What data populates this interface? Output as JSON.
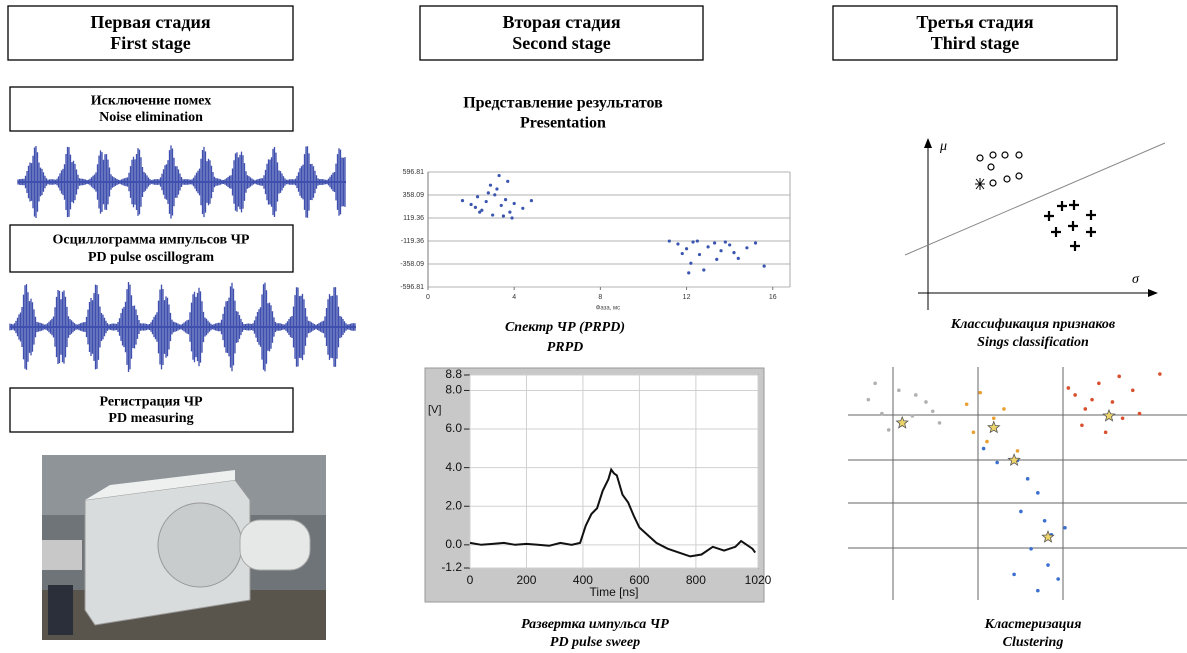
{
  "columns": [
    {
      "title_ru": "Первая стадия",
      "title_en": "First stage",
      "steps": [
        {
          "ru": "Исключение помех",
          "en": "Noise elimination"
        },
        {
          "ru": "Осциллограмма импульсов ЧР",
          "en": "PD pulse oscillogram"
        },
        {
          "ru": "Регистрация ЧР",
          "en": "PD measuring"
        }
      ]
    },
    {
      "title_ru": "Вторая стадия",
      "title_en": "Second stage",
      "heading_ru": "Представление  результатов",
      "heading_en": "Presentation",
      "captions": [
        {
          "ru": "Спектр ЧР (PRPD)",
          "en": "PRPD"
        },
        {
          "ru": "Развертка импульса ЧР",
          "en": "PD pulse sweep"
        }
      ]
    },
    {
      "title_ru": "Третья стадия",
      "title_en": "Third stage",
      "axis_mu": "μ",
      "axis_sigma": "σ",
      "captions": [
        {
          "ru": "Классификация признаков",
          "en": "Sings classification"
        },
        {
          "ru": "Кластеризация",
          "en": "Clustering"
        }
      ]
    }
  ],
  "chart_data": [
    {
      "type": "scatter",
      "x_label": "Фаза, мс",
      "xlim": [
        0,
        16.8
      ],
      "xticks": [
        0,
        4,
        8,
        12,
        16
      ],
      "ylim": [
        -596.81,
        596.81
      ],
      "yticks": [
        596.81,
        358.09,
        119.36,
        -119.36,
        -358.09,
        -596.81
      ],
      "grid": true,
      "series": [
        {
          "color": "#3a55b0",
          "x": [
            1.6,
            2.0,
            2.3,
            2.5,
            2.8,
            3.0,
            3.2,
            3.4,
            3.6,
            3.8,
            2.2,
            2.7,
            3.1,
            3.5,
            4.0,
            4.4,
            4.8,
            3.3,
            2.9,
            3.7,
            3.9,
            2.4
          ],
          "y": [
            300,
            260,
            340,
            200,
            380,
            150,
            420,
            250,
            310,
            180,
            230,
            290,
            360,
            140,
            270,
            220,
            300,
            560,
            460,
            500,
            120,
            180
          ]
        },
        {
          "color": "#3a55b0",
          "x": [
            11.2,
            11.6,
            12.0,
            12.3,
            12.6,
            13.0,
            13.3,
            13.6,
            14.0,
            14.4,
            14.8,
            15.2,
            11.8,
            12.2,
            12.8,
            13.4,
            14.2,
            15.6,
            12.1,
            13.8,
            12.5
          ],
          "y": [
            -120,
            -150,
            -200,
            -130,
            -260,
            -180,
            -140,
            -220,
            -160,
            -300,
            -190,
            -140,
            -250,
            -350,
            -420,
            -310,
            -240,
            -380,
            -450,
            -130,
            -120
          ]
        }
      ]
    },
    {
      "type": "line",
      "x_label": "Time [ns]",
      "y_label": "[V]",
      "color": "#111111",
      "xlim": [
        0,
        1020
      ],
      "xticks": [
        0,
        200,
        400,
        600,
        800,
        1020
      ],
      "ylim": [
        -1.2,
        8.8
      ],
      "yticks": [
        8.8,
        {
          "value": 8,
          "label": "8.0"
        },
        {
          "value": 6,
          "label": "6.0"
        },
        {
          "value": 4,
          "label": "4.0"
        },
        {
          "value": 2,
          "label": "2.0"
        },
        {
          "value": 0,
          "label": "0.0"
        },
        -1.2
      ],
      "grid": true,
      "x": [
        0,
        40,
        80,
        120,
        160,
        200,
        240,
        280,
        320,
        360,
        390,
        410,
        430,
        450,
        470,
        490,
        500,
        510,
        520,
        540,
        560,
        580,
        600,
        630,
        660,
        700,
        740,
        780,
        820,
        860,
        900,
        940,
        960,
        980,
        1000,
        1010
      ],
      "values": [
        0.1,
        0.0,
        0.05,
        0.1,
        0.0,
        0.05,
        0.0,
        -0.05,
        0.1,
        0.0,
        0.1,
        1.0,
        1.6,
        1.9,
        2.8,
        3.4,
        3.9,
        3.7,
        3.6,
        2.6,
        2.2,
        1.5,
        0.9,
        0.5,
        0.1,
        -0.2,
        -0.4,
        -0.6,
        -0.5,
        -0.1,
        -0.3,
        -0.1,
        0.2,
        0.0,
        -0.2,
        -0.4
      ]
    },
    {
      "type": "scatter",
      "xlim": [
        0,
        10
      ],
      "ylim": [
        0,
        10
      ],
      "series": [
        {
          "color": "#b0b0b0",
          "x": [
            0.6,
            1.0,
            1.5,
            1.9,
            2.3,
            2.7,
            1.2,
            2.0,
            0.8,
            2.5
          ],
          "y": [
            8.6,
            8.0,
            9.0,
            7.9,
            8.5,
            7.6,
            7.3,
            8.8,
            9.3,
            8.1
          ]
        },
        {
          "color": "#e8a030",
          "x": [
            3.5,
            3.9,
            4.3,
            4.6,
            3.7,
            4.1,
            5.0
          ],
          "y": [
            8.4,
            8.9,
            7.8,
            8.2,
            7.2,
            6.8,
            6.4
          ]
        },
        {
          "color": "#d9502e",
          "x": [
            6.7,
            7.0,
            7.4,
            7.8,
            8.1,
            8.4,
            6.9,
            7.6,
            8.0,
            8.6,
            7.2,
            9.2,
            6.5
          ],
          "y": [
            8.8,
            8.2,
            9.3,
            8.5,
            7.8,
            9.0,
            7.5,
            7.2,
            9.6,
            8.0,
            8.6,
            9.7,
            9.1
          ]
        },
        {
          "color": "#3a6fd0",
          "x": [
            4.0,
            4.4,
            5.0,
            5.3,
            5.6,
            5.1,
            5.8,
            6.0,
            5.4,
            5.9,
            6.2,
            4.9,
            5.6,
            6.4
          ],
          "y": [
            6.5,
            5.9,
            6.0,
            5.2,
            4.6,
            3.8,
            3.4,
            2.8,
            2.2,
            1.5,
            0.9,
            1.1,
            0.4,
            3.1
          ]
        },
        {
          "color": "#ecd36a",
          "marker": "star",
          "x": [
            1.6,
            4.3,
            4.9,
            7.7,
            5.9
          ],
          "y": [
            7.6,
            7.4,
            6.0,
            7.9,
            2.7
          ]
        }
      ]
    }
  ]
}
